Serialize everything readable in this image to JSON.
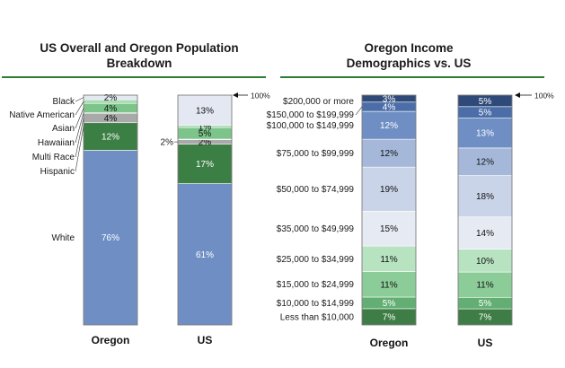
{
  "chart_data": [
    {
      "type": "bar",
      "stacked": true,
      "title": "US Overall and Oregon Population Breakdown",
      "categories": [
        "Oregon",
        "US"
      ],
      "unit": "%",
      "series": [
        {
          "name": "White",
          "values": [
            76,
            61
          ],
          "labels": [
            "76%",
            "61%"
          ],
          "color": "#6f8fc4",
          "text_color": "#ffffff"
        },
        {
          "name": "Hispanic",
          "values": [
            12,
            17
          ],
          "labels": [
            "12%",
            "17%"
          ],
          "color": "#3c7f45",
          "text_color": "#ffffff"
        },
        {
          "name": "Multi Race",
          "values": [
            4,
            2
          ],
          "labels": [
            "4%",
            "2%"
          ],
          "color": "#a9a9a9",
          "text_color": "#111111"
        },
        {
          "name": "Hawaiian",
          "values": [
            0.4,
            0.2
          ],
          "labels": [
            "",
            ""
          ],
          "color": "#2f6b3a",
          "text_color": "#ffffff"
        },
        {
          "name": "Asian",
          "values": [
            4,
            5
          ],
          "labels": [
            "4%",
            "5%"
          ],
          "color": "#7cc48a",
          "text_color": "#111111"
        },
        {
          "name": "Native American",
          "values": [
            1.6,
            1
          ],
          "labels": [
            "",
            "1%"
          ],
          "color": "#a8dcb2",
          "text_color": "#111111"
        },
        {
          "name": "Black",
          "values": [
            2,
            13
          ],
          "labels": [
            "2%",
            "13%"
          ],
          "color": "#e4e8f2",
          "text_color": "#111111"
        }
      ],
      "annotations": [
        "2%",
        "100%"
      ]
    },
    {
      "type": "bar",
      "stacked": true,
      "title": "Oregon Income Demographics vs. US",
      "categories": [
        "Oregon",
        "US"
      ],
      "unit": "%",
      "series": [
        {
          "name": "Less than $10,000",
          "values": [
            7,
            7
          ],
          "labels": [
            "7%",
            "7%"
          ],
          "color": "#3f7d46",
          "text_color": "#ffffff"
        },
        {
          "name": "$10,000 to $14,999",
          "values": [
            5,
            5
          ],
          "labels": [
            "5%",
            "5%"
          ],
          "color": "#63ae73",
          "text_color": "#ffffff"
        },
        {
          "name": "$15,000 to $24,999",
          "values": [
            11,
            11
          ],
          "labels": [
            "11%",
            "11%"
          ],
          "color": "#8ccc98",
          "text_color": "#111111"
        },
        {
          "name": "$25,000 to $34,999",
          "values": [
            11,
            10
          ],
          "labels": [
            "11%",
            "10%"
          ],
          "color": "#b7e3c0",
          "text_color": "#111111"
        },
        {
          "name": "$35,000 to $49,999",
          "values": [
            15,
            14
          ],
          "labels": [
            "15%",
            "14%"
          ],
          "color": "#e6eaf3",
          "text_color": "#111111"
        },
        {
          "name": "$50,000 to $74,999",
          "values": [
            19,
            18
          ],
          "labels": [
            "19%",
            "18%"
          ],
          "color": "#c9d4e8",
          "text_color": "#111111"
        },
        {
          "name": "$75,000 to $99,999",
          "values": [
            12,
            12
          ],
          "labels": [
            "12%",
            "12%"
          ],
          "color": "#a5b8d9",
          "text_color": "#111111"
        },
        {
          "name": "$100,000 to $149,999",
          "values": [
            12,
            13
          ],
          "labels": [
            "12%",
            "13%"
          ],
          "color": "#6f8fc4",
          "text_color": "#ffffff"
        },
        {
          "name": "$150,000 to $199,999",
          "values": [
            4,
            5
          ],
          "labels": [
            "4%",
            "5%"
          ],
          "color": "#4c6ea8",
          "text_color": "#ffffff"
        },
        {
          "name": "$200,000 or more",
          "values": [
            3,
            5
          ],
          "labels": [
            "3%",
            "5%"
          ],
          "color": "#2f4a78",
          "text_color": "#ffffff"
        }
      ],
      "annotations": [
        "100%"
      ]
    }
  ]
}
